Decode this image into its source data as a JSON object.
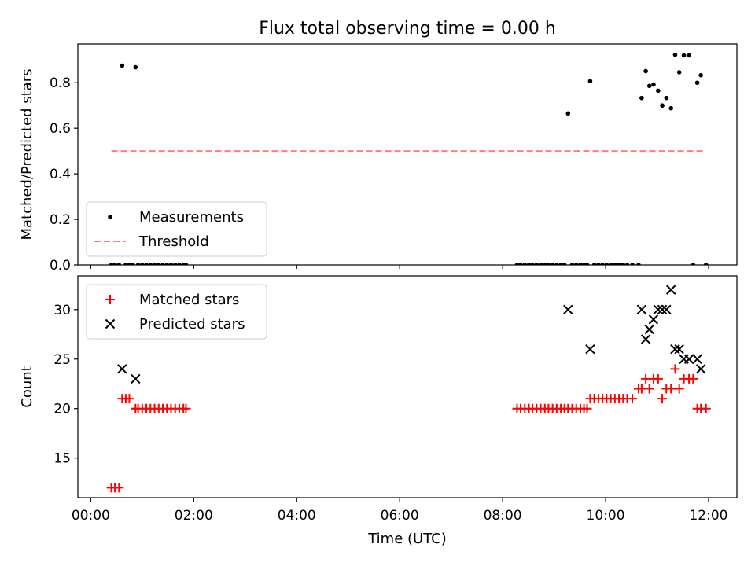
{
  "chart_data": {
    "title": "Flux total observing time = 0.00 h",
    "xlabel": "Time (UTC)",
    "xlim": [
      -0.25,
      12.55
    ],
    "x_ticks": [
      0,
      2,
      4,
      6,
      8,
      10,
      12
    ],
    "x_tick_labels": [
      "00:00",
      "02:00",
      "04:00",
      "06:00",
      "08:00",
      "10:00",
      "12:00"
    ],
    "panels": [
      {
        "type": "scatter",
        "ylabel": "Matched/Predicted stars",
        "ylim": [
          0,
          0.97
        ],
        "y_ticks": [
          0,
          0.2,
          0.4,
          0.6,
          0.8
        ],
        "y_tick_labels": [
          "0.0",
          "0.2",
          "0.4",
          "0.6",
          "0.8"
        ],
        "legend": {
          "location": "lower-left",
          "entries": [
            "Measurements",
            "Threshold"
          ]
        },
        "threshold": {
          "name": "Threshold",
          "value": 0.5,
          "x_range": [
            0.4,
            11.9
          ],
          "color": "#ff7f7f"
        },
        "series": [
          {
            "name": "Measurements",
            "color": "#000000",
            "marker": "dot",
            "x": [
              0.4,
              0.47,
              0.55,
              0.61,
              0.68,
              0.75,
              0.82,
              0.87,
              0.92,
              1.0,
              1.08,
              1.16,
              1.24,
              1.32,
              1.4,
              1.48,
              1.56,
              1.64,
              1.72,
              1.8,
              1.85,
              8.28,
              8.35,
              8.43,
              8.51,
              8.58,
              8.66,
              8.74,
              8.82,
              8.89,
              8.97,
              9.05,
              9.13,
              9.2,
              9.27,
              9.35,
              9.43,
              9.51,
              9.58,
              9.64,
              9.7,
              9.78,
              9.86,
              9.94,
              10.02,
              10.1,
              10.18,
              10.26,
              10.34,
              10.42,
              10.52,
              10.64,
              10.7,
              10.78,
              10.85,
              10.93,
              11.02,
              11.1,
              11.18,
              11.27,
              11.35,
              11.43,
              11.52,
              11.62,
              11.7,
              11.78,
              11.85,
              11.95
            ],
            "y": [
              0,
              0,
              0,
              0.875,
              0,
              0,
              0,
              0.868,
              0,
              0,
              0,
              0,
              0,
              0,
              0,
              0,
              0,
              0,
              0,
              0,
              0,
              0,
              0,
              0,
              0,
              0,
              0,
              0,
              0,
              0,
              0,
              0,
              0,
              0,
              0.665,
              0,
              0,
              0,
              0,
              0,
              0.807,
              0,
              0,
              0,
              0,
              0,
              0,
              0,
              0,
              0,
              0,
              0,
              0.733,
              0.851,
              0.786,
              0.792,
              0.765,
              0.7,
              0.733,
              0.688,
              0.923,
              0.846,
              0.92,
              0.92,
              0,
              0.8,
              0.833,
              0
            ]
          }
        ]
      },
      {
        "type": "scatter",
        "ylabel": "Count",
        "ylim": [
          11,
          33.4
        ],
        "y_ticks": [
          15,
          20,
          25,
          30
        ],
        "y_tick_labels": [
          "15",
          "20",
          "25",
          "30"
        ],
        "legend": {
          "location": "upper-left",
          "entries": [
            "Matched stars",
            "Predicted stars"
          ]
        },
        "series": [
          {
            "name": "Matched stars",
            "color": "#ff0000",
            "marker": "plus",
            "x": [
              0.4,
              0.47,
              0.55,
              0.61,
              0.68,
              0.75,
              0.87,
              0.92,
              1.0,
              1.08,
              1.16,
              1.24,
              1.32,
              1.4,
              1.48,
              1.56,
              1.64,
              1.72,
              1.8,
              1.85,
              8.28,
              8.35,
              8.43,
              8.51,
              8.58,
              8.66,
              8.74,
              8.82,
              8.89,
              8.97,
              9.05,
              9.13,
              9.2,
              9.27,
              9.35,
              9.43,
              9.51,
              9.58,
              9.64,
              9.7,
              9.78,
              9.86,
              9.94,
              10.02,
              10.1,
              10.18,
              10.26,
              10.34,
              10.42,
              10.52,
              10.64,
              10.7,
              10.78,
              10.85,
              10.93,
              11.02,
              11.1,
              11.18,
              11.27,
              11.35,
              11.43,
              11.52,
              11.62,
              11.7,
              11.78,
              11.85,
              11.95
            ],
            "y": [
              12,
              12,
              12,
              21,
              21,
              21,
              20,
              20,
              20,
              20,
              20,
              20,
              20,
              20,
              20,
              20,
              20,
              20,
              20,
              20,
              20,
              20,
              20,
              20,
              20,
              20,
              20,
              20,
              20,
              20,
              20,
              20,
              20,
              20,
              20,
              20,
              20,
              20,
              20,
              21,
              21,
              21,
              21,
              21,
              21,
              21,
              21,
              21,
              21,
              21,
              22,
              22,
              23,
              22,
              23,
              23,
              21,
              22,
              22,
              24,
              22,
              23,
              23,
              23,
              20,
              20,
              20
            ]
          },
          {
            "name": "Predicted stars",
            "color": "#000000",
            "marker": "x",
            "x": [
              0.61,
              0.87,
              9.27,
              9.7,
              10.7,
              10.78,
              10.85,
              10.93,
              11.02,
              11.1,
              11.18,
              11.27,
              11.35,
              11.43,
              11.52,
              11.62,
              11.78,
              11.85
            ],
            "y": [
              24,
              23,
              30,
              26,
              30,
              27,
              28,
              29,
              30,
              30,
              30,
              32,
              26,
              26,
              25,
              25,
              25,
              24
            ]
          }
        ]
      }
    ]
  }
}
